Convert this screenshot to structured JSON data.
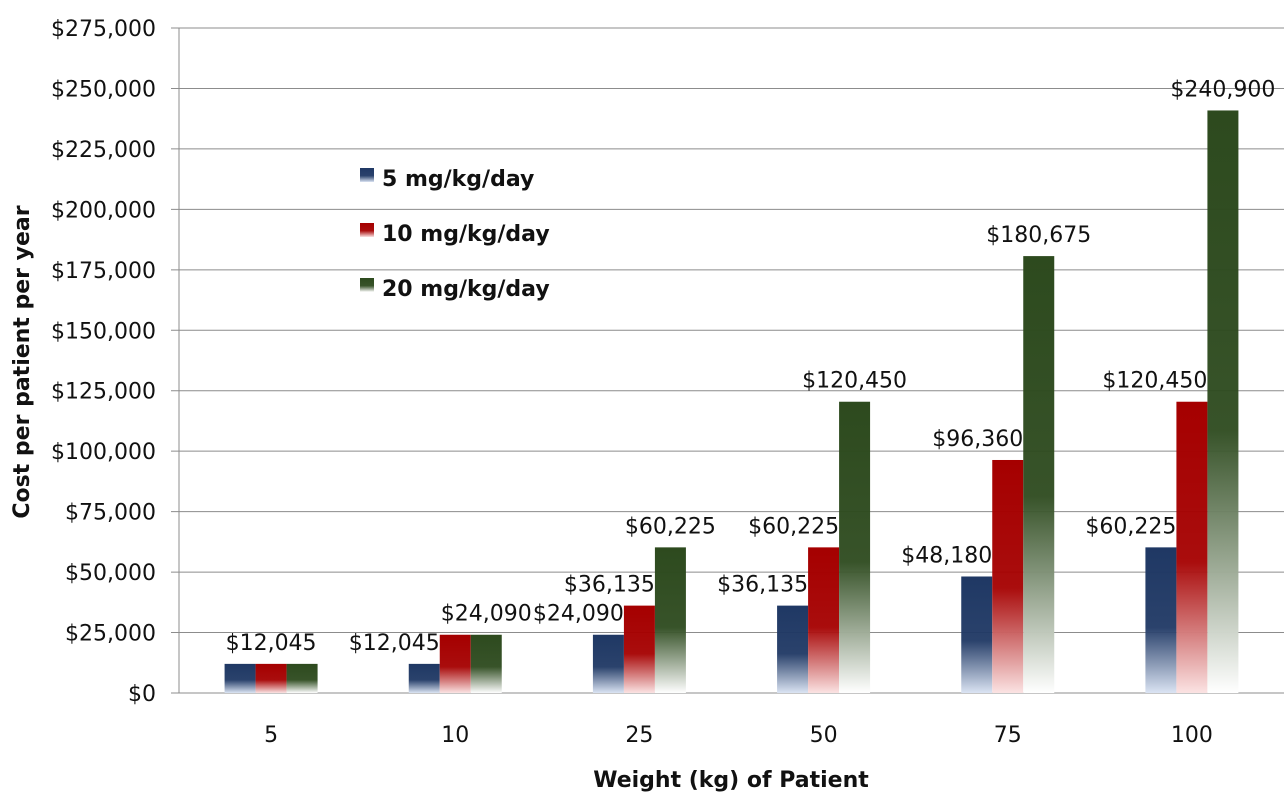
{
  "chart_data": {
    "type": "bar",
    "title": "",
    "xlabel": "Weight (kg) of Patient",
    "ylabel": "Cost per patient per year",
    "categories": [
      "5",
      "10",
      "25",
      "50",
      "75",
      "100"
    ],
    "series": [
      {
        "name": "5 mg/kg/day",
        "values": [
          12045,
          12045,
          24090,
          36135,
          48180,
          60225
        ],
        "labels": [
          null,
          "$12,045",
          "$24,090",
          "$36,135",
          "$48,180",
          "$60,225"
        ],
        "color": "#1f3864"
      },
      {
        "name": "10 mg/kg/day",
        "values": [
          12045,
          24090,
          36135,
          60225,
          96360,
          120450
        ],
        "labels": [
          "$12,045",
          null,
          "$36,135",
          "$60,225",
          "$96,360",
          "$120,450"
        ],
        "color": "#a50000"
      },
      {
        "name": "20 mg/kg/day",
        "values": [
          12045,
          24090,
          60225,
          120450,
          180675,
          240900
        ],
        "labels": [
          null,
          "$24,090",
          "$60,225",
          "$120,450",
          "$180,675",
          "$240,900"
        ],
        "color": "#2d4a1e"
      }
    ],
    "ylim": [
      0,
      275000
    ],
    "yticks": [
      "$0",
      "$25,000",
      "$50,000",
      "$75,000",
      "$100,000",
      "$125,000",
      "$150,000",
      "$175,000",
      "$200,000",
      "$225,000",
      "$250,000",
      "$275,000"
    ],
    "grid": true,
    "legend": "upper-left"
  }
}
